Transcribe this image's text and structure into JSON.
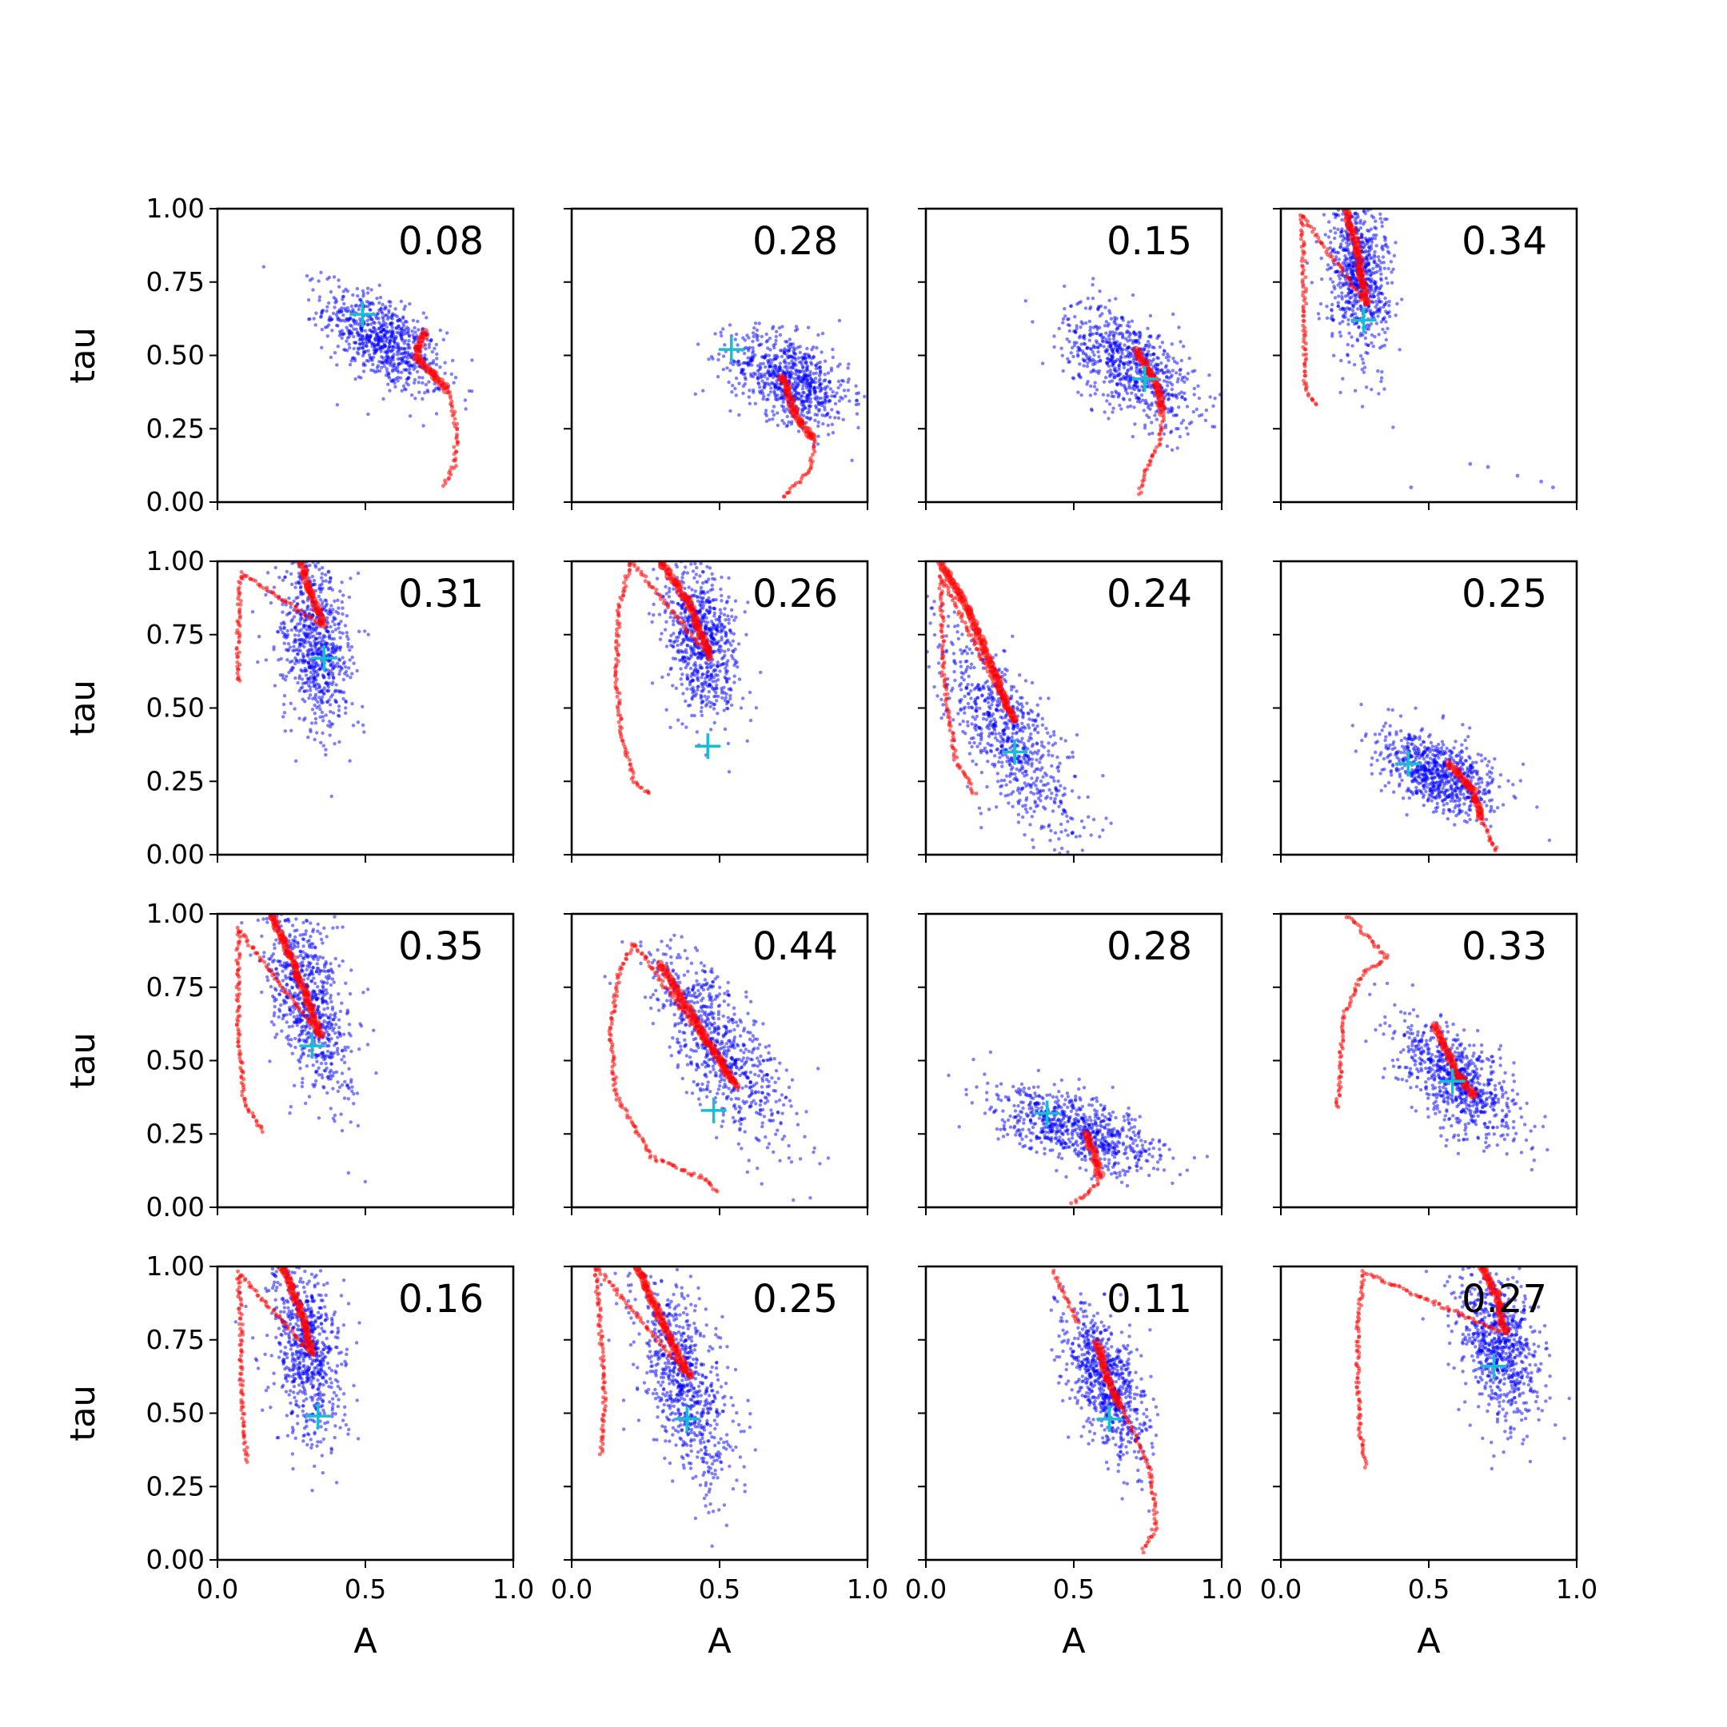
{
  "chart_data": {
    "type": "scatter",
    "layout": "4x4 grid of scatter panels with shared axes",
    "xlabel": "A",
    "ylabel": "tau",
    "xlim": [
      0,
      1
    ],
    "ylim": [
      0,
      1
    ],
    "x_ticks": [
      "0.0",
      "0.5",
      "1.0"
    ],
    "y_ticks": [
      "0.00",
      "0.25",
      "0.50",
      "0.75",
      "1.00"
    ],
    "grid": false,
    "colors": {
      "samples": "#0000ff",
      "trajectory": "#ff0000",
      "best_fit_marker": "#17becf"
    },
    "panels": [
      {
        "annotation": "0.08",
        "samples": {
          "center": [
            0.56,
            0.55
          ],
          "sd": [
            0.1,
            0.09
          ],
          "corr": -0.6
        },
        "best_fit": [
          0.49,
          0.64
        ],
        "trajectory": [
          [
            0.7,
            0.58
          ],
          [
            0.67,
            0.5
          ],
          [
            0.78,
            0.38
          ],
          [
            0.81,
            0.25
          ],
          [
            0.8,
            0.12
          ],
          [
            0.76,
            0.05
          ]
        ]
      },
      {
        "annotation": "0.28",
        "samples": {
          "center": [
            0.74,
            0.42
          ],
          "sd": [
            0.1,
            0.08
          ],
          "corr": -0.4
        },
        "best_fit": [
          0.54,
          0.52
        ],
        "trajectory": [
          [
            0.71,
            0.43
          ],
          [
            0.76,
            0.29
          ],
          [
            0.82,
            0.21
          ],
          [
            0.81,
            0.12
          ],
          [
            0.76,
            0.06
          ],
          [
            0.71,
            0.01
          ]
        ]
      },
      {
        "annotation": "0.15",
        "samples": {
          "center": [
            0.69,
            0.47
          ],
          "sd": [
            0.11,
            0.1
          ],
          "corr": -0.55
        },
        "best_fit": [
          0.74,
          0.42
        ],
        "trajectory": [
          [
            0.71,
            0.52
          ],
          [
            0.78,
            0.4
          ],
          [
            0.8,
            0.3
          ],
          [
            0.79,
            0.2
          ],
          [
            0.74,
            0.1
          ],
          [
            0.72,
            0.02
          ]
        ]
      },
      {
        "annotation": "0.34",
        "samples": {
          "center": [
            0.26,
            0.78
          ],
          "sd": [
            0.05,
            0.15
          ],
          "corr": -0.2
        },
        "best_fit": [
          0.28,
          0.62
        ],
        "trajectory": [
          [
            0.22,
            1.0
          ],
          [
            0.26,
            0.85
          ],
          [
            0.29,
            0.67
          ],
          [
            0.07,
            0.98
          ],
          [
            0.08,
            0.72
          ],
          [
            0.08,
            0.4
          ],
          [
            0.12,
            0.32
          ]
        ],
        "outliers": [
          [
            0.64,
            0.13
          ],
          [
            0.7,
            0.12
          ],
          [
            0.8,
            0.09
          ],
          [
            0.88,
            0.07
          ],
          [
            0.92,
            0.05
          ],
          [
            0.44,
            0.05
          ]
        ]
      },
      {
        "annotation": "0.31",
        "samples": {
          "center": [
            0.33,
            0.72
          ],
          "sd": [
            0.06,
            0.14
          ],
          "corr": -0.3
        },
        "best_fit": [
          0.36,
          0.67
        ],
        "trajectory": [
          [
            0.28,
            1.0
          ],
          [
            0.33,
            0.85
          ],
          [
            0.36,
            0.78
          ],
          [
            0.08,
            0.96
          ],
          [
            0.07,
            0.8
          ],
          [
            0.07,
            0.58
          ]
        ]
      },
      {
        "annotation": "0.26",
        "samples": {
          "center": [
            0.44,
            0.73
          ],
          "sd": [
            0.06,
            0.13
          ],
          "corr": -0.3
        },
        "best_fit": [
          0.46,
          0.37
        ],
        "trajectory": [
          [
            0.3,
            1.0
          ],
          [
            0.4,
            0.85
          ],
          [
            0.47,
            0.67
          ],
          [
            0.2,
            1.0
          ],
          [
            0.16,
            0.84
          ],
          [
            0.15,
            0.62
          ],
          [
            0.17,
            0.4
          ],
          [
            0.21,
            0.25
          ],
          [
            0.27,
            0.2
          ]
        ]
      },
      {
        "annotation": "0.24",
        "samples": {
          "center": [
            0.27,
            0.42
          ],
          "sd": [
            0.12,
            0.18
          ],
          "corr": -0.75
        },
        "best_fit": [
          0.3,
          0.35
        ],
        "trajectory": [
          [
            0.05,
            1.0
          ],
          [
            0.15,
            0.82
          ],
          [
            0.3,
            0.45
          ],
          [
            0.05,
            0.95
          ],
          [
            0.06,
            0.6
          ],
          [
            0.1,
            0.32
          ],
          [
            0.17,
            0.2
          ]
        ]
      },
      {
        "annotation": "0.25",
        "samples": {
          "center": [
            0.53,
            0.28
          ],
          "sd": [
            0.1,
            0.07
          ],
          "corr": -0.5
        },
        "best_fit": [
          0.43,
          0.31
        ],
        "trajectory": [
          [
            0.57,
            0.31
          ],
          [
            0.65,
            0.22
          ],
          [
            0.68,
            0.12
          ],
          [
            0.71,
            0.05
          ],
          [
            0.73,
            0.01
          ]
        ]
      },
      {
        "annotation": "0.35",
        "samples": {
          "center": [
            0.31,
            0.7
          ],
          "sd": [
            0.07,
            0.16
          ],
          "corr": -0.5
        },
        "best_fit": [
          0.32,
          0.55
        ],
        "trajectory": [
          [
            0.18,
            1.0
          ],
          [
            0.27,
            0.8
          ],
          [
            0.35,
            0.58
          ],
          [
            0.07,
            0.95
          ],
          [
            0.07,
            0.6
          ],
          [
            0.09,
            0.35
          ],
          [
            0.16,
            0.25
          ]
        ]
      },
      {
        "annotation": "0.44",
        "samples": {
          "center": [
            0.5,
            0.55
          ],
          "sd": [
            0.12,
            0.17
          ],
          "corr": -0.75
        },
        "best_fit": [
          0.48,
          0.33
        ],
        "trajectory": [
          [
            0.3,
            0.83
          ],
          [
            0.45,
            0.58
          ],
          [
            0.56,
            0.41
          ],
          [
            0.21,
            0.9
          ],
          [
            0.16,
            0.8
          ],
          [
            0.13,
            0.6
          ],
          [
            0.15,
            0.38
          ],
          [
            0.27,
            0.17
          ],
          [
            0.44,
            0.1
          ],
          [
            0.5,
            0.05
          ]
        ]
      },
      {
        "annotation": "0.28",
        "samples": {
          "center": [
            0.52,
            0.26
          ],
          "sd": [
            0.14,
            0.07
          ],
          "corr": -0.6
        },
        "best_fit": [
          0.41,
          0.32
        ],
        "trajectory": [
          [
            0.54,
            0.25
          ],
          [
            0.57,
            0.17
          ],
          [
            0.59,
            0.1
          ],
          [
            0.55,
            0.05
          ],
          [
            0.49,
            0.01
          ]
        ]
      },
      {
        "annotation": "0.33",
        "samples": {
          "center": [
            0.6,
            0.43
          ],
          "sd": [
            0.1,
            0.1
          ],
          "corr": -0.6
        },
        "best_fit": [
          0.58,
          0.43
        ],
        "trajectory": [
          [
            0.52,
            0.62
          ],
          [
            0.6,
            0.45
          ],
          [
            0.66,
            0.37
          ],
          [
            0.22,
            1.0
          ],
          [
            0.36,
            0.85
          ],
          [
            0.28,
            0.8
          ],
          [
            0.21,
            0.65
          ],
          [
            0.2,
            0.45
          ],
          [
            0.19,
            0.33
          ]
        ]
      },
      {
        "annotation": "0.16",
        "samples": {
          "center": [
            0.3,
            0.73
          ],
          "sd": [
            0.06,
            0.16
          ],
          "corr": -0.3
        },
        "best_fit": [
          0.34,
          0.49
        ],
        "trajectory": [
          [
            0.22,
            1.0
          ],
          [
            0.28,
            0.85
          ],
          [
            0.32,
            0.7
          ],
          [
            0.07,
            0.98
          ],
          [
            0.08,
            0.8
          ],
          [
            0.08,
            0.59
          ],
          [
            0.1,
            0.33
          ]
        ]
      },
      {
        "annotation": "0.25",
        "samples": {
          "center": [
            0.38,
            0.6
          ],
          "sd": [
            0.08,
            0.17
          ],
          "corr": -0.55
        },
        "best_fit": [
          0.39,
          0.48
        ],
        "trajectory": [
          [
            0.22,
            1.0
          ],
          [
            0.32,
            0.78
          ],
          [
            0.4,
            0.62
          ],
          [
            0.08,
            1.0
          ],
          [
            0.1,
            0.75
          ],
          [
            0.11,
            0.55
          ],
          [
            0.1,
            0.35
          ]
        ]
      },
      {
        "annotation": "0.11",
        "samples": {
          "center": [
            0.61,
            0.6
          ],
          "sd": [
            0.07,
            0.13
          ],
          "corr": -0.55
        },
        "best_fit": [
          0.62,
          0.48
        ],
        "trajectory": [
          [
            0.58,
            0.74
          ],
          [
            0.62,
            0.6
          ],
          [
            0.66,
            0.52
          ],
          [
            0.7,
            0.44
          ],
          [
            0.76,
            0.3
          ],
          [
            0.78,
            0.12
          ],
          [
            0.73,
            0.02
          ],
          [
            0.43,
            0.98
          ],
          [
            0.52,
            0.8
          ]
        ]
      },
      {
        "annotation": "0.27",
        "samples": {
          "center": [
            0.74,
            0.72
          ],
          "sd": [
            0.07,
            0.13
          ],
          "corr": -0.3
        },
        "best_fit": [
          0.72,
          0.66
        ],
        "trajectory": [
          [
            0.68,
            1.0
          ],
          [
            0.73,
            0.9
          ],
          [
            0.76,
            0.77
          ],
          [
            0.28,
            0.98
          ],
          [
            0.26,
            0.8
          ],
          [
            0.26,
            0.6
          ],
          [
            0.27,
            0.42
          ],
          [
            0.29,
            0.31
          ]
        ]
      }
    ]
  }
}
